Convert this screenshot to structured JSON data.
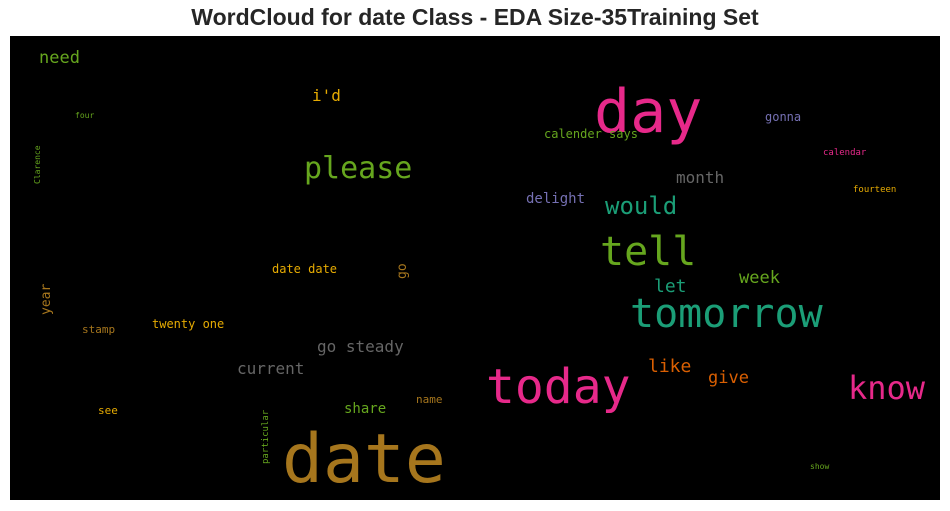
{
  "chart_data": {
    "type": "wordcloud",
    "title": "WordCloud for date Class - EDA Size-35Training Set",
    "background": "#000000",
    "colors": {
      "pink": "#e7298a",
      "teal": "#1b9e77",
      "green": "#66a61e",
      "gold": "#a6761d",
      "orange": "#d95f02",
      "amber": "#e6ab02",
      "purple": "#7570b3",
      "gray": "#666666"
    },
    "words": [
      {
        "text": "date",
        "color": "#a6761d"
      },
      {
        "text": "today",
        "color": "#e7298a"
      },
      {
        "text": "day",
        "color": "#e7298a"
      },
      {
        "text": "tomorrow",
        "color": "#1b9e77"
      },
      {
        "text": "tell",
        "color": "#66a61e"
      },
      {
        "text": "know",
        "color": "#e7298a"
      },
      {
        "text": "please",
        "color": "#66a61e"
      },
      {
        "text": "would",
        "color": "#1b9e77"
      },
      {
        "text": "go steady",
        "color": "#666666"
      },
      {
        "text": "current",
        "color": "#666666"
      },
      {
        "text": "month",
        "color": "#666666"
      },
      {
        "text": "like",
        "color": "#d95f02"
      },
      {
        "text": "give",
        "color": "#d95f02"
      },
      {
        "text": "week",
        "color": "#66a61e"
      },
      {
        "text": "let",
        "color": "#1b9e77"
      },
      {
        "text": "need",
        "color": "#66a61e"
      },
      {
        "text": "i'd",
        "color": "#e6ab02"
      },
      {
        "text": "share",
        "color": "#66a61e"
      },
      {
        "text": "delight",
        "color": "#7570b3"
      },
      {
        "text": "year",
        "color": "#a6761d"
      },
      {
        "text": "go",
        "color": "#a6761d"
      },
      {
        "text": "calender says",
        "color": "#66a61e"
      },
      {
        "text": "gonna",
        "color": "#7570b3"
      },
      {
        "text": "date date",
        "color": "#e6ab02"
      },
      {
        "text": "twenty one",
        "color": "#e6ab02"
      },
      {
        "text": "stamp",
        "color": "#a6761d"
      },
      {
        "text": "see",
        "color": "#e6ab02"
      },
      {
        "text": "name",
        "color": "#a6761d"
      },
      {
        "text": "particular",
        "color": "#66a61e"
      },
      {
        "text": "calendar",
        "color": "#e7298a"
      },
      {
        "text": "fourteen",
        "color": "#e6ab02"
      },
      {
        "text": "four",
        "color": "#66a61e"
      },
      {
        "text": "Clarence",
        "color": "#66a61e"
      },
      {
        "text": "show",
        "color": "#66a61e"
      }
    ]
  }
}
